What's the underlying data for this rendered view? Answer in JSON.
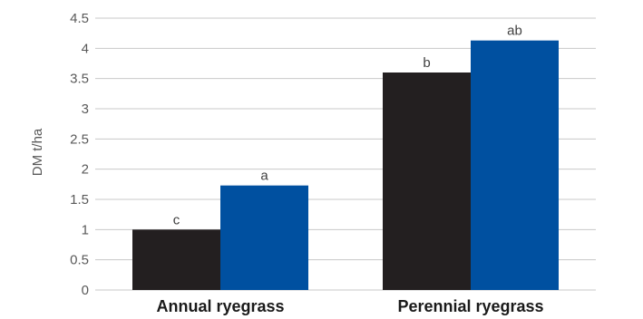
{
  "chart_data": {
    "type": "bar",
    "title": "",
    "xlabel": "",
    "ylabel": "DM t/ha",
    "ylim": [
      0,
      4.5
    ],
    "yticks": [
      "0",
      "0.5",
      "1",
      "1.5",
      "2",
      "2.5",
      "3",
      "3.5",
      "4",
      "4.5"
    ],
    "grid": true,
    "legend": "none",
    "categories": [
      "Annual ryegrass",
      "Perennial ryegrass"
    ],
    "series": [
      {
        "values": [
          1.0,
          3.6
        ],
        "color": "#231f20",
        "labels": [
          "c",
          "b"
        ]
      },
      {
        "values": [
          1.73,
          4.13
        ],
        "color": "#0050a0",
        "labels": [
          "a",
          "ab"
        ]
      }
    ]
  }
}
